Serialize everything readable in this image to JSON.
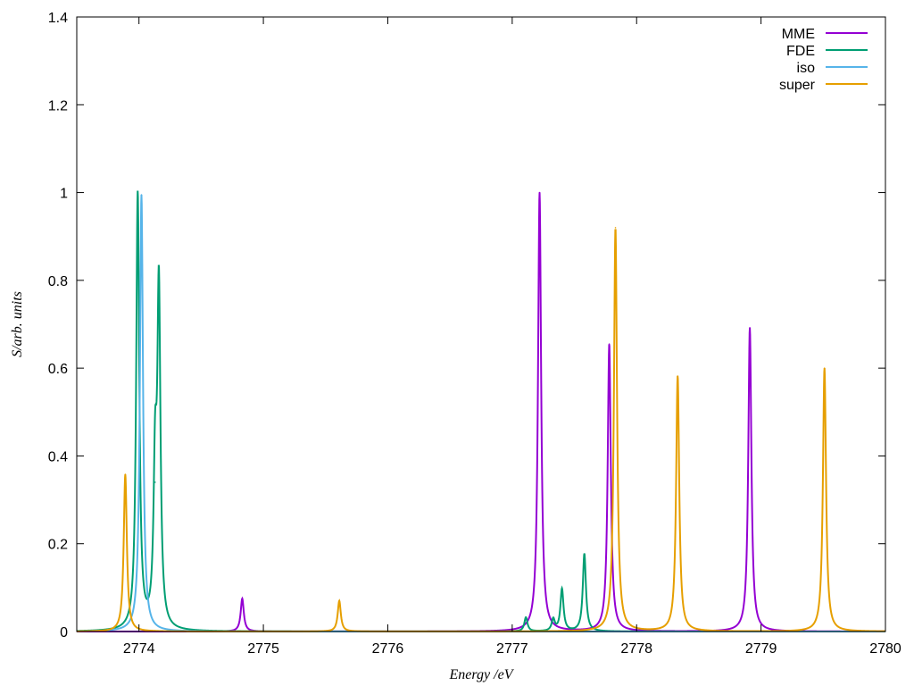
{
  "chart_data": {
    "type": "line",
    "title": "",
    "xlabel": "Energy /eV",
    "ylabel": "S/arb. units",
    "xlim": [
      2773.5,
      2780
    ],
    "ylim": [
      0,
      1.4
    ],
    "xticks": [
      2774,
      2775,
      2776,
      2777,
      2778,
      2779,
      2780
    ],
    "yticks": [
      0,
      0.2,
      0.4,
      0.6,
      0.8,
      1,
      1.2,
      1.4
    ],
    "xtick_labels": [
      "2774",
      "2775",
      "2776",
      "2777",
      "2778",
      "2779",
      "2780"
    ],
    "ytick_labels": [
      "0",
      "0.2",
      "0.4",
      "0.6",
      "0.8",
      "1",
      "1.2",
      "1.4"
    ],
    "grid": false,
    "legend_position": "top-right",
    "series": [
      {
        "name": "MME",
        "color": "#9400d3",
        "peaks": [
          {
            "x": 2774.83,
            "y": 0.075
          },
          {
            "x": 2777.22,
            "y": 1.0
          },
          {
            "x": 2777.78,
            "y": 0.655
          },
          {
            "x": 2778.91,
            "y": 0.692
          }
        ]
      },
      {
        "name": "FDE",
        "color": "#009e73",
        "peaks": [
          {
            "x": 2773.99,
            "y": 0.995
          },
          {
            "x": 2774.13,
            "y": 0.34
          },
          {
            "x": 2774.16,
            "y": 0.76
          },
          {
            "x": 2777.11,
            "y": 0.032
          },
          {
            "x": 2777.33,
            "y": 0.027
          },
          {
            "x": 2777.4,
            "y": 0.096
          },
          {
            "x": 2777.58,
            "y": 0.177
          }
        ]
      },
      {
        "name": "iso",
        "color": "#56b4e9",
        "peaks": [
          {
            "x": 2774.02,
            "y": 0.995
          }
        ]
      },
      {
        "name": "super",
        "color": "#e69f00",
        "peaks": [
          {
            "x": 2773.89,
            "y": 0.358
          },
          {
            "x": 2775.61,
            "y": 0.07
          },
          {
            "x": 2777.83,
            "y": 0.92
          },
          {
            "x": 2778.33,
            "y": 0.582
          },
          {
            "x": 2779.51,
            "y": 0.6
          }
        ]
      }
    ]
  }
}
